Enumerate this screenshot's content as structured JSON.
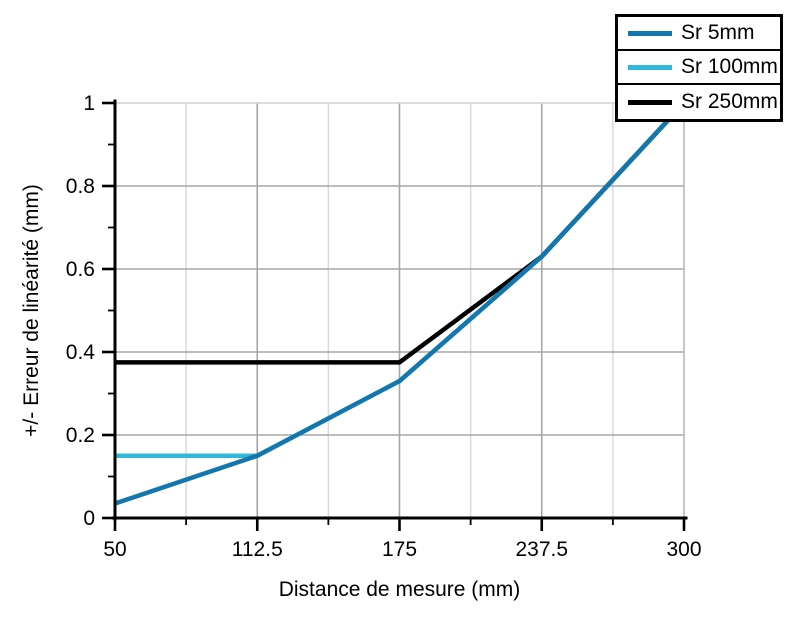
{
  "chart_data": {
    "type": "line",
    "title": "",
    "xlabel": "Distance de mesure (mm)",
    "ylabel": "+/- Erreur de linéarité (mm)",
    "xlim": [
      50,
      300
    ],
    "ylim": [
      0,
      1
    ],
    "x_ticks": [
      50,
      112.5,
      175,
      237.5,
      300
    ],
    "x_tick_labels": [
      "50",
      "112.5",
      "175",
      "237.5",
      "300"
    ],
    "x_minor_ticks": [
      81.25,
      143.75,
      206.25,
      268.75
    ],
    "y_ticks": [
      0,
      0.2,
      0.4,
      0.6,
      0.8,
      1
    ],
    "y_tick_labels": [
      "0",
      "0.2",
      "0.4",
      "0.6",
      "0.8",
      "1"
    ],
    "y_minor_ticks": [
      0.1,
      0.3,
      0.5,
      0.7,
      0.9
    ],
    "grid": {
      "major_vertical": true,
      "minor_vertical": true,
      "major_horizontal": true,
      "minor_horizontal": false
    },
    "legend_position": "top-right",
    "series": [
      {
        "name": "Sr 5mm",
        "color": "#1377ad",
        "points": [
          [
            50,
            0.035
          ],
          [
            112.5,
            0.15
          ],
          [
            175,
            0.33
          ],
          [
            237.5,
            0.63
          ],
          [
            300,
            1.0
          ]
        ]
      },
      {
        "name": "Sr 100mm",
        "color": "#30b8da",
        "points": [
          [
            50,
            0.15
          ],
          [
            112.5,
            0.15
          ],
          [
            175,
            0.33
          ],
          [
            237.5,
            0.63
          ],
          [
            300,
            1.0
          ]
        ]
      },
      {
        "name": "Sr 250mm",
        "color": "#000000",
        "points": [
          [
            50,
            0.375
          ],
          [
            175,
            0.375
          ],
          [
            237.5,
            0.63
          ],
          [
            300,
            1.0
          ]
        ]
      }
    ],
    "draw_order": [
      1,
      2,
      0
    ]
  },
  "colors": {
    "background": "#ffffff",
    "axis": "#000000",
    "major_grid": "#a6a6a6",
    "minor_grid": "#d9d9d9",
    "top_border": "#d2d2d2",
    "right_border": "#b8b8b8",
    "text": "#000000"
  }
}
